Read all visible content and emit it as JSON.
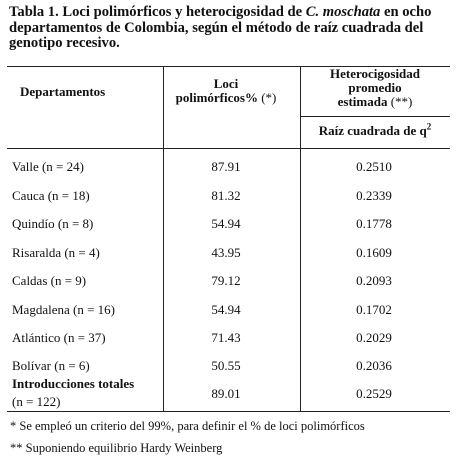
{
  "caption": {
    "prefix": "Tabla 1. Loci polimórficos y heterocigosidad de ",
    "species": "C. moschata",
    "suffix": " en ocho departamentos de Colombia, según el método de raíz cuadrada del genotipo recesivo."
  },
  "header": {
    "departamentos": "Departamentos",
    "loci_line1": "Loci",
    "loci_line2": "polimórficos%",
    "loci_mark": "(*)",
    "het_line1": "Heterocigosidad",
    "het_line2": "promedio",
    "het_line3": "estimada",
    "het_mark": "(**)",
    "het_sub_text": "Raíz cuadrada de q",
    "het_sub_sup": "2"
  },
  "rows": [
    {
      "departamento": "Valle (n = 24)",
      "loci": "87.91",
      "het": "0.2510"
    },
    {
      "departamento": "Cauca (n = 18)",
      "loci": "81.32",
      "het": "0.2339"
    },
    {
      "departamento": "Quindío (n = 8)",
      "loci": "54.94",
      "het": "0.1778"
    },
    {
      "departamento": "Risaralda (n = 4)",
      "loci": "43.95",
      "het": "0.1609"
    },
    {
      "departamento": "Caldas (n = 9)",
      "loci": "79.12",
      "het": "0.2093"
    },
    {
      "departamento": "Magdalena (n = 16)",
      "loci": "54.94",
      "het": "0.1702"
    },
    {
      "departamento": "Atlántico (n = 37)",
      "loci": "71.43",
      "het": "0.2029"
    },
    {
      "departamento": "Bolívar (n = 6)",
      "loci": "50.55",
      "het": "0.2036"
    }
  ],
  "total": {
    "label": "Introducciones totales",
    "n": "(n = 122)",
    "loci": "89.01",
    "het": "0.2529"
  },
  "notes": {
    "note1": "* Se empleó un criterio del 99%, para definir el % de loci polimórficos",
    "note2": "** Suponiendo equilibrio Hardy Weinberg"
  }
}
